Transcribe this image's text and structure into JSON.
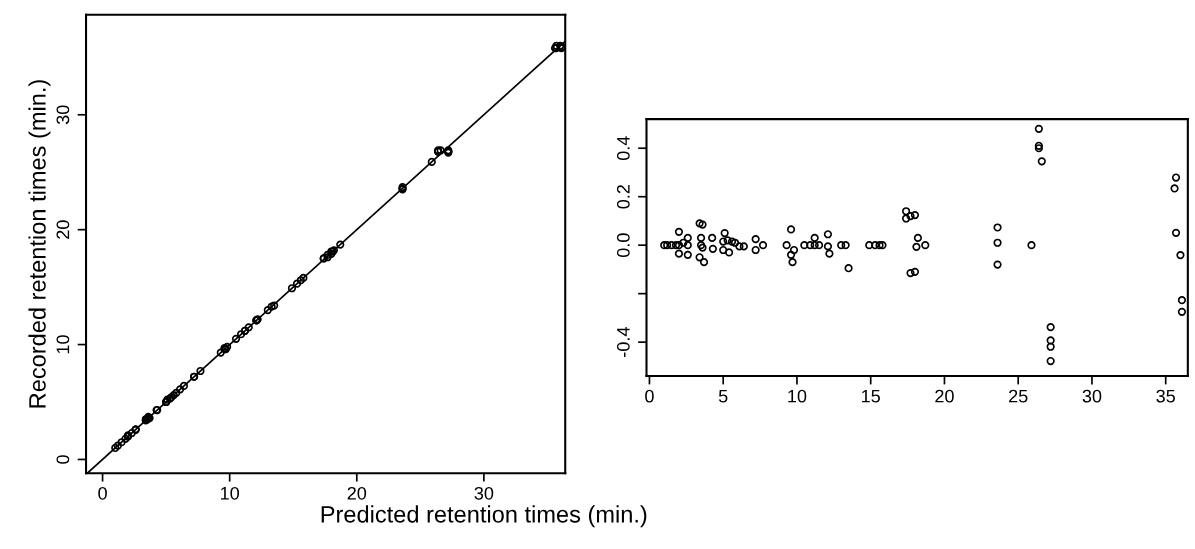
{
  "chart_data": [
    {
      "type": "scatter",
      "xlabel": "Predicted retention times (min.)",
      "ylabel": "Recorded retention times (min.)",
      "xlim": [
        -1.3,
        36.4
      ],
      "ylim": [
        -1.2,
        38.7
      ],
      "xticks": [
        0,
        10,
        20,
        30
      ],
      "yticks": [
        0,
        10,
        20,
        30
      ],
      "grid": false,
      "marker": "circle",
      "series": [
        {
          "color": "#000000",
          "x": [
            1.0,
            1.2,
            1.5,
            1.8,
            2.0,
            2.0,
            2.0,
            2.3,
            2.6,
            2.6,
            2.6,
            3.4,
            3.6,
            3.5,
            3.5,
            3.6,
            3.4,
            3.7,
            4.25,
            4.3,
            5.1,
            5.0,
            5.3,
            5.6,
            5.8,
            5.0,
            5.4,
            6.1,
            6.4,
            7.2,
            7.2,
            7.7,
            9.3,
            9.6,
            9.8,
            9.6,
            9.7,
            10.5,
            10.9,
            11.2,
            11.2,
            11.5,
            12.1,
            12.1,
            12.2,
            13.0,
            13.3,
            13.5,
            14.9,
            15.3,
            15.6,
            15.8,
            17.4,
            17.4,
            17.7,
            18.0,
            17.7,
            18.0,
            18.2,
            18.1,
            18.7,
            23.6,
            23.6,
            23.6,
            25.9,
            26.4,
            26.4,
            26.4,
            26.6,
            27.2,
            27.2,
            27.2,
            27.2,
            35.7,
            35.6,
            35.7,
            36.0,
            36.1,
            36.1
          ],
          "values": [
            1.0,
            1.2,
            1.5,
            1.8,
            2.1,
            2.0,
            2.0,
            2.3,
            2.6,
            2.6,
            2.6,
            3.5,
            3.7,
            3.5,
            3.5,
            3.6,
            3.4,
            3.6,
            4.3,
            4.3,
            5.2,
            5.0,
            5.3,
            5.6,
            5.8,
            5.0,
            5.4,
            6.1,
            6.4,
            7.2,
            7.2,
            7.7,
            9.3,
            9.7,
            9.8,
            9.6,
            9.6,
            10.5,
            10.9,
            11.2,
            11.2,
            11.5,
            12.1,
            12.1,
            12.2,
            13.0,
            13.3,
            13.4,
            14.9,
            15.3,
            15.6,
            15.8,
            17.5,
            17.5,
            17.8,
            18.1,
            17.6,
            17.9,
            18.2,
            18.1,
            18.7,
            23.7,
            23.6,
            23.5,
            25.9,
            26.9,
            26.8,
            26.8,
            26.9,
            26.9,
            26.8,
            26.8,
            26.7,
            36.0,
            35.8,
            35.8,
            36.0,
            35.9,
            35.8
          ]
        },
        {
          "type": "line",
          "color": "#000000",
          "marker": "none",
          "line_style": "solid",
          "x": [
            -1.2,
            36.4
          ],
          "values": [
            -1.2,
            36.4
          ]
        }
      ]
    },
    {
      "type": "scatter",
      "xlim": [
        -0.2,
        36.5
      ],
      "ylim": [
        -0.54,
        0.52
      ],
      "xticks": [
        0,
        5,
        10,
        15,
        20,
        25,
        30,
        35
      ],
      "yticks": [
        {
          "value": -0.4,
          "label": "-0.4"
        },
        {
          "value": -0.2,
          "label": null
        },
        {
          "value": 0.0,
          "label": "0.0"
        },
        {
          "value": 0.2,
          "label": "0.2"
        },
        {
          "value": 0.4,
          "label": "0.4"
        }
      ],
      "grid": false,
      "marker": "circle",
      "series": [
        {
          "color": "#000000",
          "x": [
            1.0,
            1.2,
            1.5,
            1.8,
            2.0,
            2.0,
            2.0,
            2.3,
            2.6,
            2.6,
            2.6,
            3.4,
            3.6,
            3.5,
            3.5,
            3.6,
            3.4,
            3.7,
            4.25,
            4.3,
            5.1,
            5.0,
            5.3,
            5.6,
            5.8,
            5.0,
            5.4,
            6.1,
            6.4,
            7.2,
            7.2,
            7.7,
            9.3,
            9.6,
            9.8,
            9.6,
            9.7,
            10.5,
            10.9,
            11.2,
            11.2,
            11.5,
            12.1,
            12.1,
            12.2,
            13.0,
            13.3,
            13.5,
            14.9,
            15.3,
            15.6,
            15.8,
            17.4,
            17.4,
            17.7,
            18.0,
            17.7,
            18.0,
            18.2,
            18.1,
            18.7,
            23.6,
            23.6,
            23.6,
            25.9,
            26.4,
            26.4,
            26.4,
            26.6,
            27.2,
            27.2,
            27.2,
            27.2,
            35.7,
            35.6,
            35.7,
            36.0,
            36.1,
            36.1
          ],
          "values": [
            0,
            0,
            0,
            0,
            0.055,
            0,
            -0.035,
            0.01,
            0.03,
            0,
            -0.04,
            0.09,
            0.085,
            0.03,
            0,
            -0.01,
            -0.05,
            -0.07,
            0.03,
            -0.015,
            0.05,
            0.015,
            0.02,
            0.015,
            0.01,
            -0.02,
            -0.03,
            -0.005,
            -0.005,
            0.025,
            -0.02,
            0,
            0,
            0.065,
            -0.02,
            -0.04,
            -0.07,
            0,
            0,
            0.03,
            0,
            0,
            0.045,
            -0.005,
            -0.035,
            0,
            0,
            -0.095,
            0,
            0,
            0,
            0,
            0.14,
            0.11,
            0.12,
            0.124,
            -0.115,
            -0.11,
            0.03,
            -0.007,
            0,
            0.073,
            0.01,
            -0.08,
            0,
            0.48,
            0.41,
            0.4,
            0.346,
            -0.338,
            -0.393,
            -0.419,
            -0.478,
            0.279,
            0.234,
            0.051,
            -0.041,
            -0.227,
            -0.275
          ]
        }
      ]
    }
  ]
}
